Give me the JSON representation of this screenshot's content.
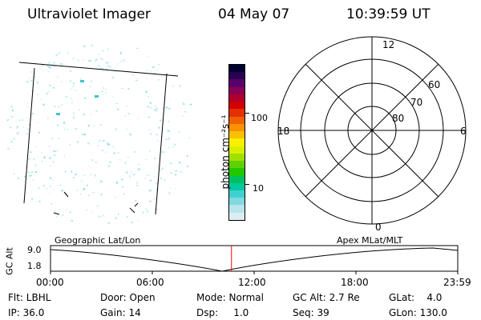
{
  "header": {
    "instrument": "Ultraviolet Imager",
    "date": "04 May 07",
    "time": "10:39:59 UT"
  },
  "colorbar": {
    "unit_label": "photon cm⁻²s⁻¹",
    "ticks": [
      {
        "label": "100",
        "value": 100
      },
      {
        "label": "10",
        "value": 10
      }
    ],
    "colors": [
      "#000033",
      "#2a0050",
      "#5a006a",
      "#8a0055",
      "#b0002b",
      "#d40000",
      "#e43000",
      "#f06000",
      "#f89000",
      "#f8c000",
      "#f8f000",
      "#d8f000",
      "#a0e000",
      "#60d000",
      "#20c800",
      "#00c060",
      "#00c8a0",
      "#40d0d0",
      "#80d8e0",
      "#b8e4ec",
      "#dcecf0"
    ]
  },
  "polar_plot": {
    "mlt_labels": {
      "top": "12",
      "right": "6",
      "bottom": "0",
      "left": "18"
    },
    "lat_labels": [
      "60",
      "70",
      "80"
    ]
  },
  "timeline": {
    "y_axis_label": "GC Alt",
    "y_ticks": [
      "9.0",
      "1.8"
    ],
    "left_label": "Geographic Lat/Lon",
    "right_label": "Apex MLat/MLT",
    "x_ticks": [
      "00:00",
      "06:00",
      "12:00",
      "18:00",
      "23:59"
    ],
    "current_time_fraction": 0.4444
  },
  "status": {
    "filter": "Flt: LBHL",
    "ip": "IP: 36.0",
    "door": "Door: Open",
    "gain": "Gain: 14",
    "mode": "Mode: Normal",
    "dsp": "Dsp:     1.0",
    "gc_alt": "GC Alt: 2.7 Re",
    "seq": "Seq: 39",
    "glat": "GLat:    4.0",
    "glon": "GLon: 130.0"
  },
  "colors": {
    "cursor": "#ff0000",
    "dots": "#7fd6dc"
  }
}
